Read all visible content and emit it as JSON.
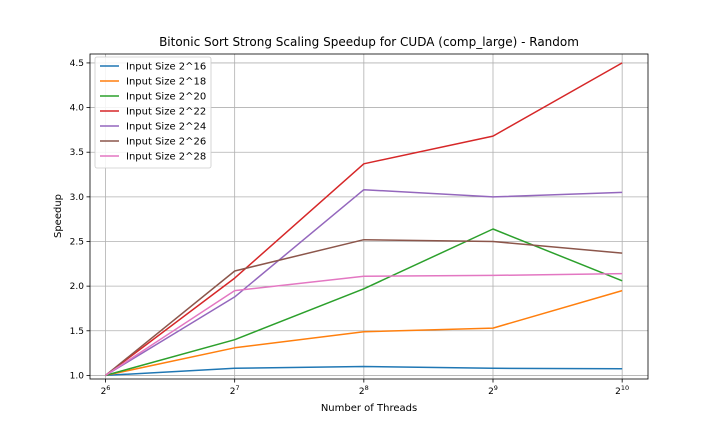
{
  "chart_data": {
    "type": "line",
    "title": "Bitonic Sort Strong Scaling Speedup for CUDA (comp_large) - Random",
    "xlabel": "Number of Threads",
    "ylabel": "Speedup",
    "x": [
      64,
      128,
      256,
      512,
      1024
    ],
    "x_tick_labels": [
      {
        "base": "2",
        "exp": "6"
      },
      {
        "base": "2",
        "exp": "7"
      },
      {
        "base": "2",
        "exp": "8"
      },
      {
        "base": "2",
        "exp": "9"
      },
      {
        "base": "2",
        "exp": "10"
      }
    ],
    "x_scale": "log2",
    "ylim": [
      0.96,
      4.6
    ],
    "y_ticks": [
      1.0,
      1.5,
      2.0,
      2.5,
      3.0,
      3.5,
      4.0,
      4.5
    ],
    "grid": true,
    "legend_position": "top-left",
    "series": [
      {
        "name": "Input Size 2^16",
        "color": "#1f77b4",
        "values": [
          1.0,
          1.08,
          1.1,
          1.08,
          1.075
        ]
      },
      {
        "name": "Input Size 2^18",
        "color": "#ff7f0e",
        "values": [
          1.0,
          1.31,
          1.49,
          1.53,
          1.95
        ]
      },
      {
        "name": "Input Size 2^20",
        "color": "#2ca02c",
        "values": [
          1.0,
          1.4,
          1.97,
          2.64,
          2.06
        ]
      },
      {
        "name": "Input Size 2^22",
        "color": "#d62728",
        "values": [
          1.0,
          2.09,
          3.37,
          3.68,
          4.5
        ]
      },
      {
        "name": "Input Size 2^24",
        "color": "#9467bd",
        "values": [
          1.0,
          1.88,
          3.08,
          3.0,
          3.05
        ]
      },
      {
        "name": "Input Size 2^26",
        "color": "#8c564b",
        "values": [
          1.0,
          2.17,
          2.52,
          2.5,
          2.37
        ]
      },
      {
        "name": "Input Size 2^28",
        "color": "#e377c2",
        "values": [
          1.0,
          1.95,
          2.11,
          2.12,
          2.14
        ]
      }
    ]
  }
}
